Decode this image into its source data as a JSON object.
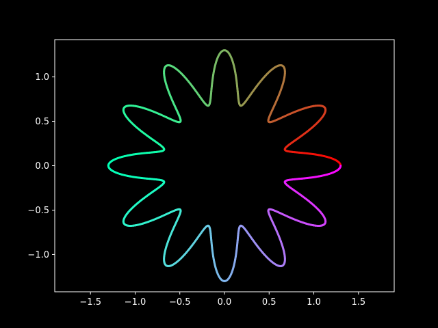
{
  "chart_data": {
    "type": "line",
    "title": "",
    "xlabel": "",
    "ylabel": "",
    "curve": "polar r = 1 + 0.3*cos(12*theta), theta from 0 to 2*pi",
    "series": [
      {
        "colormap": "rainbow (reversed, red at theta=0)",
        "line_width": 3
      }
    ],
    "x_ticks": [
      "−1.5",
      "−1.0",
      "−0.5",
      "0.0",
      "0.5",
      "1.0",
      "1.5"
    ],
    "x_tick_values": [
      -1.5,
      -1.0,
      -0.5,
      0.0,
      0.5,
      1.0,
      1.5
    ],
    "y_ticks": [
      "−1.0",
      "−0.5",
      "0.0",
      "0.5",
      "1.0"
    ],
    "y_tick_values": [
      -1.0,
      -0.5,
      0.0,
      0.5,
      1.0
    ],
    "xlim": [
      -1.9,
      1.9
    ],
    "ylim": [
      -1.42,
      1.42
    ],
    "grid": false,
    "legend": "none",
    "colors": {
      "background": "#000000",
      "axes": "#ffffff",
      "text": "#ffffff"
    }
  }
}
